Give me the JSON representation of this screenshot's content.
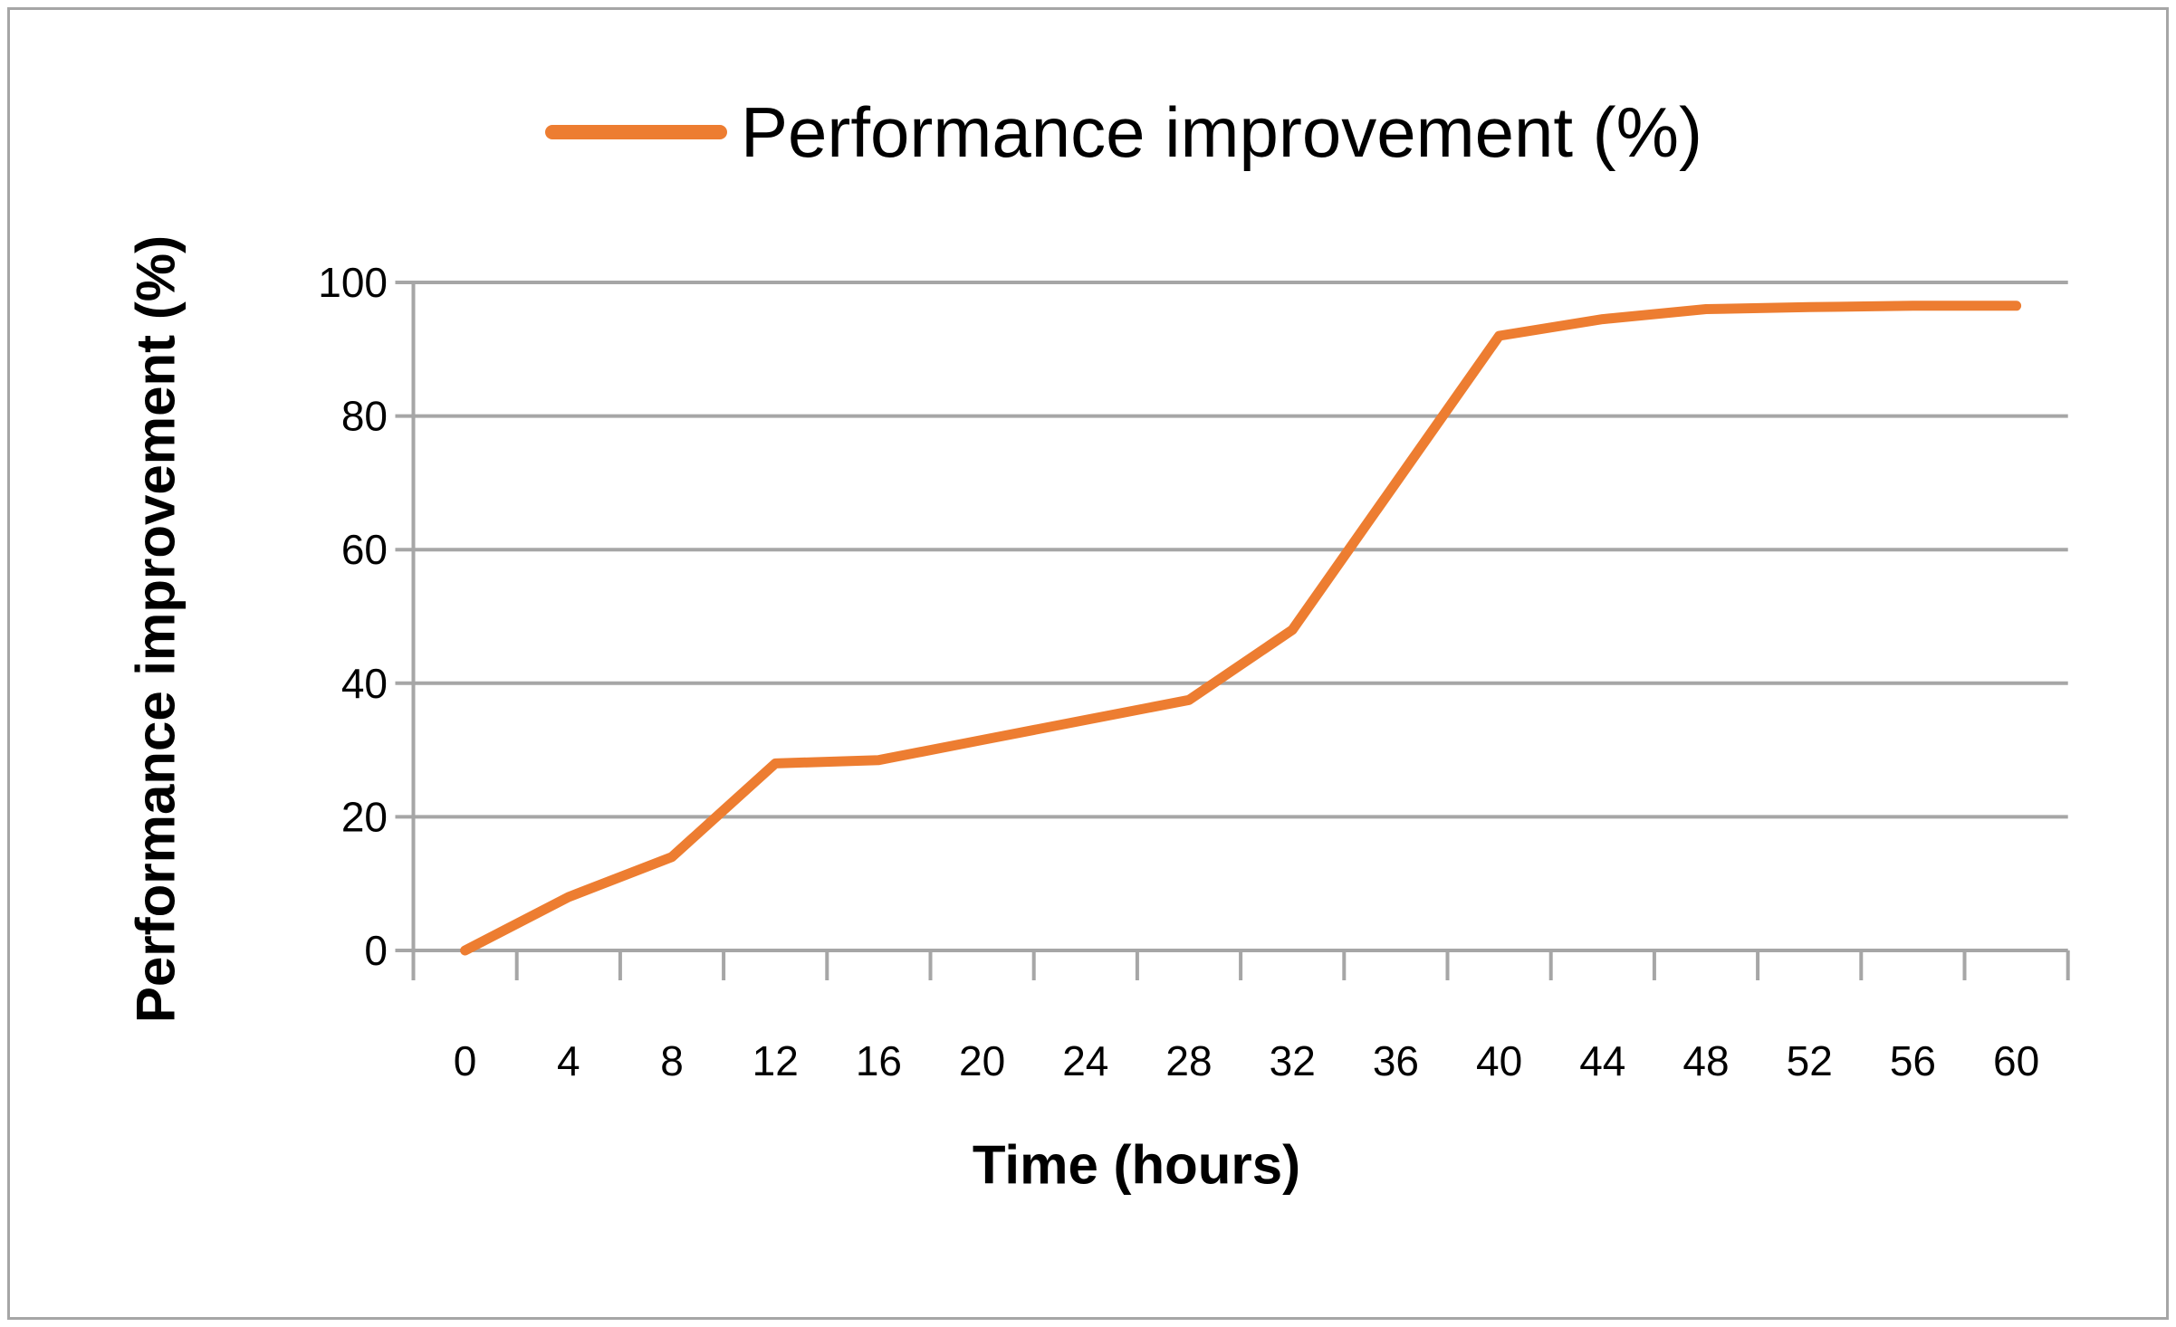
{
  "legend": {
    "label": "Performance improvement (%)"
  },
  "axes": {
    "x_title": "Time (hours)",
    "y_title": "Performance improvement (%)",
    "y_tick_labels": [
      "0",
      "20",
      "40",
      "60",
      "80",
      "100"
    ],
    "x_tick_labels": [
      "0",
      "4",
      "8",
      "12",
      "16",
      "20",
      "24",
      "28",
      "32",
      "36",
      "40",
      "44",
      "48",
      "52",
      "56",
      "60"
    ]
  },
  "chart_data": {
    "type": "line",
    "title": "",
    "xlabel": "Time (hours)",
    "ylabel": "Performance improvement (%)",
    "categories": [
      0,
      4,
      8,
      12,
      16,
      20,
      24,
      28,
      32,
      36,
      40,
      44,
      48,
      52,
      56,
      60
    ],
    "series": [
      {
        "name": "Performance improvement (%)",
        "values": [
          0,
          8,
          14,
          28,
          28.5,
          31.5,
          34.5,
          37.5,
          48,
          70,
          92,
          94.5,
          96,
          96.3,
          96.5,
          96.5
        ]
      }
    ],
    "ylim": [
      0,
      100
    ],
    "y_tick_step": 20,
    "grid": "horizontal",
    "legend_position": "top-center"
  },
  "colors": {
    "series": "#ED7D31",
    "grid": "#A6A6A6",
    "axis": "#A6A6A6",
    "text": "#000000",
    "background": "#FFFFFF",
    "border": "#A6A6A6"
  }
}
